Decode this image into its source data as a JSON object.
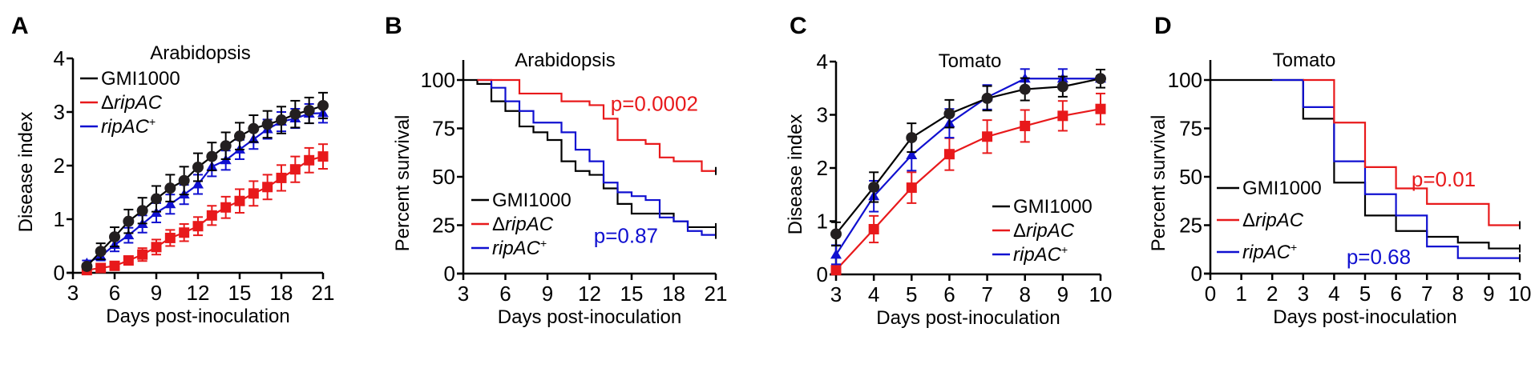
{
  "colors": {
    "GMI1000": "#000000",
    "dripAC": "#e8191b",
    "ripACplus": "#1010d0",
    "marker_black": "#231f20"
  },
  "chart_data": [
    {
      "id": "A",
      "panel_letter": "A",
      "type": "line",
      "title": "Arabidopsis",
      "xlabel": "Days post-inoculation",
      "ylabel": "Disease index",
      "xlim": [
        3,
        21
      ],
      "ylim": [
        0,
        4
      ],
      "xticks": [
        3,
        6,
        9,
        12,
        15,
        18,
        21
      ],
      "yticks": [
        0,
        1,
        2,
        3,
        4
      ],
      "grid": false,
      "error_bars": true,
      "legend_position": "top-left",
      "x": [
        4,
        5,
        6,
        7,
        8,
        9,
        10,
        11,
        12,
        13,
        14,
        15,
        16,
        17,
        18,
        19,
        20,
        21
      ],
      "series": [
        {
          "key": "GMI1000",
          "name": "GMI1000",
          "marker": "circle",
          "values": [
            0.12,
            0.4,
            0.67,
            0.96,
            1.16,
            1.38,
            1.58,
            1.72,
            1.97,
            2.17,
            2.37,
            2.55,
            2.69,
            2.77,
            2.85,
            2.96,
            3.03,
            3.12
          ],
          "errors": [
            0.05,
            0.15,
            0.18,
            0.22,
            0.24,
            0.24,
            0.25,
            0.26,
            0.26,
            0.26,
            0.25,
            0.25,
            0.25,
            0.25,
            0.25,
            0.25,
            0.24,
            0.24
          ]
        },
        {
          "key": "dripAC",
          "name": "ΔripAC",
          "italic_part": "ripAC",
          "prefix": "Δ",
          "marker": "square",
          "values": [
            0.05,
            0.09,
            0.13,
            0.23,
            0.34,
            0.48,
            0.65,
            0.75,
            0.87,
            1.07,
            1.22,
            1.34,
            1.48,
            1.6,
            1.77,
            1.93,
            2.1,
            2.17
          ],
          "errors": [
            0.03,
            0.05,
            0.05,
            0.08,
            0.12,
            0.14,
            0.15,
            0.16,
            0.17,
            0.18,
            0.2,
            0.22,
            0.23,
            0.23,
            0.24,
            0.24,
            0.23,
            0.23
          ]
        },
        {
          "key": "ripACplus",
          "name": "ripAC+",
          "italic_part": "ripAC",
          "suffix": "+",
          "marker": "triangle",
          "values": [
            0.18,
            0.31,
            0.52,
            0.7,
            0.91,
            1.12,
            1.28,
            1.46,
            1.65,
            1.98,
            2.1,
            2.3,
            2.49,
            2.68,
            2.82,
            2.88,
            2.97,
            2.98
          ],
          "errors": [
            0.05,
            0.08,
            0.12,
            0.14,
            0.16,
            0.18,
            0.18,
            0.18,
            0.18,
            0.18,
            0.18,
            0.18,
            0.18,
            0.18,
            0.18,
            0.18,
            0.18,
            0.18
          ]
        }
      ]
    },
    {
      "id": "B",
      "panel_letter": "B",
      "type": "line",
      "subtype": "kaplan-meier",
      "title": "Arabidopsis",
      "xlabel": "Days post-inoculation",
      "ylabel": "Percent survival",
      "xlim": [
        3,
        21
      ],
      "ylim": [
        0,
        110
      ],
      "xticks": [
        3,
        6,
        9,
        12,
        15,
        18,
        21
      ],
      "yticks": [
        0,
        25,
        50,
        75,
        100
      ],
      "grid": false,
      "legend_position": "bottom-left",
      "annotations": [
        {
          "text": "p=0.0002",
          "color_key": "dripAC",
          "x": 13.5,
          "y": 84
        },
        {
          "text": "p=0.87",
          "color_key": "ripACplus",
          "x": 12.3,
          "y": 16
        }
      ],
      "series": [
        {
          "key": "GMI1000",
          "name": "GMI1000",
          "steps": [
            [
              3,
              100
            ],
            [
              4,
              98
            ],
            [
              5,
              89
            ],
            [
              6,
              84
            ],
            [
              7,
              76
            ],
            [
              8,
              73
            ],
            [
              9,
              69
            ],
            [
              10,
              58
            ],
            [
              11,
              53
            ],
            [
              12,
              51
            ],
            [
              13,
              44
            ],
            [
              14,
              36
            ],
            [
              15,
              31
            ],
            [
              17,
              31
            ],
            [
              18,
              27
            ],
            [
              19,
              24
            ],
            [
              21,
              24
            ]
          ]
        },
        {
          "key": "dripAC",
          "name": "ΔripAC",
          "italic_part": "ripAC",
          "prefix": "Δ",
          "steps": [
            [
              4,
              100
            ],
            [
              7,
              93
            ],
            [
              10,
              89
            ],
            [
              12,
              87
            ],
            [
              13,
              80
            ],
            [
              14,
              69
            ],
            [
              16,
              67
            ],
            [
              17,
              60
            ],
            [
              18,
              58
            ],
            [
              20,
              53
            ],
            [
              21,
              53
            ]
          ]
        },
        {
          "key": "ripACplus",
          "name": "ripAC+",
          "italic_part": "ripAC",
          "suffix": "+",
          "steps": [
            [
              5,
              96
            ],
            [
              6,
              89
            ],
            [
              7,
              84
            ],
            [
              8,
              78
            ],
            [
              10,
              73
            ],
            [
              11,
              64
            ],
            [
              12,
              58
            ],
            [
              13,
              47
            ],
            [
              14,
              42
            ],
            [
              15,
              40
            ],
            [
              16,
              38
            ],
            [
              17,
              29
            ],
            [
              18,
              27
            ],
            [
              19,
              22
            ],
            [
              20,
              20
            ],
            [
              21,
              20
            ]
          ]
        }
      ]
    },
    {
      "id": "C",
      "panel_letter": "C",
      "type": "line",
      "title": "Tomato",
      "xlabel": "Days post-inoculation",
      "ylabel": "Disease index",
      "xlim": [
        3,
        10
      ],
      "ylim": [
        0,
        4
      ],
      "xticks": [
        3,
        4,
        5,
        6,
        7,
        8,
        9,
        10
      ],
      "yticks": [
        0,
        1,
        2,
        3,
        4
      ],
      "grid": false,
      "error_bars": true,
      "legend_position": "bottom-right",
      "x": [
        3,
        4,
        5,
        6,
        7,
        8,
        9,
        10
      ],
      "series": [
        {
          "key": "GMI1000",
          "name": "GMI1000",
          "marker": "circle",
          "values": [
            0.76,
            1.64,
            2.57,
            3.02,
            3.31,
            3.48,
            3.53,
            3.68
          ],
          "errors": [
            0.22,
            0.28,
            0.27,
            0.26,
            0.23,
            0.21,
            0.19,
            0.17
          ]
        },
        {
          "key": "dripAC",
          "name": "ΔripAC",
          "italic_part": "ripAC",
          "prefix": "Δ",
          "marker": "square",
          "values": [
            0.08,
            0.85,
            1.63,
            2.26,
            2.59,
            2.79,
            2.98,
            3.11
          ],
          "errors": [
            0.08,
            0.25,
            0.29,
            0.3,
            0.31,
            0.3,
            0.28,
            0.29
          ]
        },
        {
          "key": "ripACplus",
          "name": "ripAC+",
          "italic_part": "ripAC",
          "suffix": "+",
          "marker": "triangle",
          "values": [
            0.37,
            1.47,
            2.24,
            2.84,
            3.33,
            3.68,
            3.68,
            3.68
          ],
          "errors": [
            0.18,
            0.29,
            0.29,
            0.27,
            0.23,
            0.18,
            0.18,
            0.05
          ]
        }
      ]
    },
    {
      "id": "D",
      "panel_letter": "D",
      "type": "line",
      "subtype": "kaplan-meier",
      "title": "Tomato",
      "xlabel": "Days post-inoculation",
      "ylabel": "Percent survival",
      "xlim": [
        0,
        10
      ],
      "ylim": [
        0,
        110
      ],
      "xticks": [
        0,
        1,
        2,
        3,
        4,
        5,
        6,
        7,
        8,
        9,
        10
      ],
      "yticks": [
        0,
        25,
        50,
        75,
        100
      ],
      "grid": false,
      "legend_position": "bottom-left",
      "annotations": [
        {
          "text": "p=0.01",
          "color_key": "dripAC",
          "x": 6.5,
          "y": 45
        },
        {
          "text": "p=0.68",
          "color_key": "ripACplus",
          "x": 4.4,
          "y": 5
        }
      ],
      "series": [
        {
          "key": "GMI1000",
          "name": "GMI1000",
          "steps": [
            [
              0,
              100
            ],
            [
              3,
              80
            ],
            [
              4,
              47
            ],
            [
              5,
              30
            ],
            [
              6,
              22
            ],
            [
              7,
              19
            ],
            [
              8,
              16
            ],
            [
              9,
              13
            ],
            [
              10,
              13
            ]
          ]
        },
        {
          "key": "dripAC",
          "name": "ΔripAC",
          "italic_part": "ripAC",
          "prefix": "Δ",
          "steps": [
            [
              3,
              100
            ],
            [
              4,
              78
            ],
            [
              5,
              55
            ],
            [
              6,
              44
            ],
            [
              7,
              36
            ],
            [
              9,
              25
            ],
            [
              10,
              25
            ]
          ]
        },
        {
          "key": "ripACplus",
          "name": "ripAC+",
          "italic_part": "ripAC",
          "suffix": "+",
          "steps": [
            [
              3,
              86
            ],
            [
              4,
              58
            ],
            [
              5,
              41
            ],
            [
              6,
              30
            ],
            [
              7,
              14
            ],
            [
              8,
              8
            ],
            [
              10,
              8
            ]
          ]
        }
      ]
    }
  ]
}
